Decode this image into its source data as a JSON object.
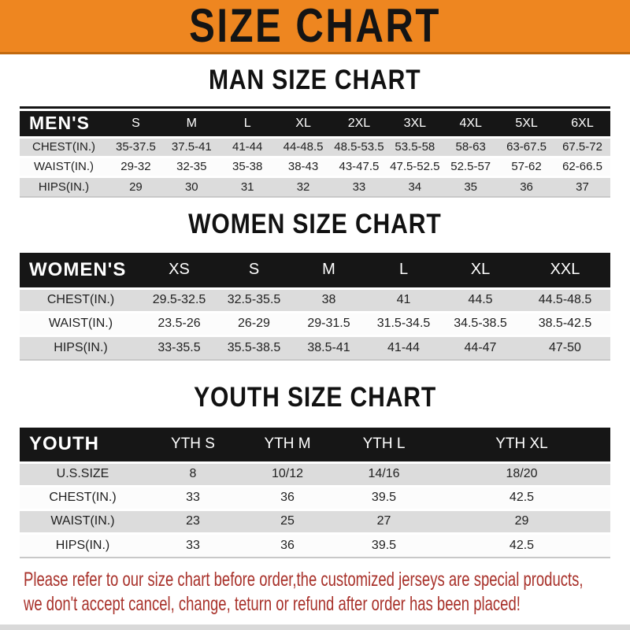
{
  "banner": {
    "title": "SIZE CHART"
  },
  "charts": [
    {
      "id": "men",
      "heading": "MAN SIZE CHART",
      "header": {
        "label": "MEN'S",
        "cols": [
          "S",
          "M",
          "L",
          "XL",
          "2XL",
          "3XL",
          "4XL",
          "5XL",
          "6XL"
        ]
      },
      "rows": [
        {
          "label": "CHEST(IN.)",
          "values": [
            "35-37.5",
            "37.5-41",
            "41-44",
            "44-48.5",
            "48.5-53.5",
            "53.5-58",
            "58-63",
            "63-67.5",
            "67.5-72"
          ]
        },
        {
          "label": "WAIST(IN.)",
          "values": [
            "29-32",
            "32-35",
            "35-38",
            "38-43",
            "43-47.5",
            "47.5-52.5",
            "52.5-57",
            "57-62",
            "62-66.5"
          ]
        },
        {
          "label": "HIPS(IN.)",
          "values": [
            "29",
            "30",
            "31",
            "32",
            "33",
            "34",
            "35",
            "36",
            "37"
          ]
        }
      ]
    },
    {
      "id": "women",
      "heading": "WOMEN SIZE CHART",
      "header": {
        "label": "WOMEN'S",
        "cols": [
          "XS",
          "S",
          "M",
          "L",
          "XL",
          "XXL"
        ]
      },
      "rows": [
        {
          "label": "CHEST(IN.)",
          "values": [
            "29.5-32.5",
            "32.5-35.5",
            "38",
            "41",
            "44.5",
            "44.5-48.5"
          ]
        },
        {
          "label": "WAIST(IN.)",
          "values": [
            "23.5-26",
            "26-29",
            "29-31.5",
            "31.5-34.5",
            "34.5-38.5",
            "38.5-42.5"
          ]
        },
        {
          "label": "HIPS(IN.)",
          "values": [
            "33-35.5",
            "35.5-38.5",
            "38.5-41",
            "41-44",
            "44-47",
            "47-50"
          ]
        }
      ]
    },
    {
      "id": "youth",
      "heading": "YOUTH SIZE CHART",
      "header": {
        "label": "YOUTH",
        "cols": [
          "YTH S",
          "YTH M",
          "YTH L",
          "YTH XL"
        ]
      },
      "rows": [
        {
          "label": "U.S.SIZE",
          "values": [
            "8",
            "10/12",
            "14/16",
            "18/20"
          ]
        },
        {
          "label": "CHEST(IN.)",
          "values": [
            "33",
            "36",
            "39.5",
            "42.5"
          ]
        },
        {
          "label": "WAIST(IN.)",
          "values": [
            "23",
            "25",
            "27",
            "29"
          ]
        },
        {
          "label": "HIPS(IN.)",
          "values": [
            "33",
            "36",
            "39.5",
            "42.5"
          ]
        }
      ]
    }
  ],
  "footer": {
    "line1": "Please refer to our size chart before order,the customized jerseys are special products,",
    "line2": "we don't accept cancel, change, teturn or refund after order has been placed!"
  },
  "colors": {
    "banner_bg": "#EE8620",
    "banner_edge": "#C1690F",
    "header_bar_bg": "#161616",
    "header_bar_text": "#FFFFFF",
    "row_stripe": "#DCDCDC",
    "footer_text": "#A8312A"
  }
}
